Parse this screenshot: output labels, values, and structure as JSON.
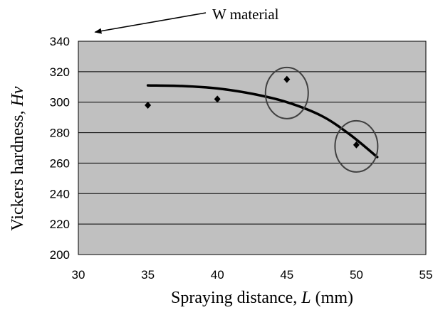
{
  "chart_data": {
    "type": "scatter",
    "xlabel": {
      "prefix": "Spraying distance, ",
      "var": "L",
      "suffix": " (mm)"
    },
    "ylabel": {
      "prefix": "Vickers hardness, ",
      "var": "Hv"
    },
    "xlim": [
      30,
      55
    ],
    "ylim": [
      200,
      340
    ],
    "x_ticks": [
      30,
      35,
      40,
      45,
      50,
      55
    ],
    "y_ticks": [
      200,
      220,
      240,
      260,
      280,
      300,
      320,
      340
    ],
    "grid": "horizontal",
    "points": [
      {
        "x": 35,
        "y": 298
      },
      {
        "x": 40,
        "y": 302
      },
      {
        "x": 45,
        "y": 315
      },
      {
        "x": 50,
        "y": 272
      }
    ],
    "trend_curve": [
      {
        "x": 35,
        "y": 311
      },
      {
        "x": 37.5,
        "y": 310.6
      },
      {
        "x": 40,
        "y": 309
      },
      {
        "x": 42.5,
        "y": 305.5
      },
      {
        "x": 45,
        "y": 300
      },
      {
        "x": 47.5,
        "y": 291
      },
      {
        "x": 49.5,
        "y": 279
      },
      {
        "x": 51.5,
        "y": 264
      }
    ],
    "highlighted_points": [
      {
        "x": 45,
        "y": 306
      },
      {
        "x": 50,
        "y": 271
      }
    ],
    "annotation": {
      "text": "W material",
      "points_to": {
        "x": 31.2,
        "y": 346
      }
    },
    "colors": {
      "plot_background": "#c0c0c0",
      "gridline": "#000000",
      "marker": "#000000",
      "curve": "#000000",
      "circle": "#404040"
    }
  }
}
